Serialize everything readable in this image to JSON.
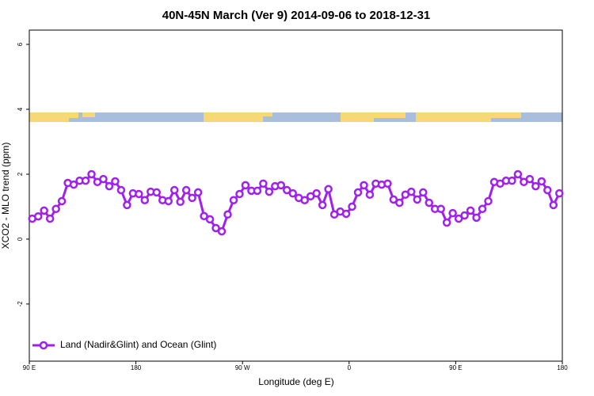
{
  "chart_data": {
    "type": "line",
    "title": "40N-45N March (Ver 9)   2014-09-06 to 2018-12-31",
    "x_label": "Longitude (deg E)",
    "y_label": "XCO2 - MLO trend (ppm)",
    "x": [
      92.5,
      97.5,
      102.5,
      107.5,
      112.5,
      117.5,
      122.5,
      127.5,
      132.5,
      137.5,
      142.5,
      147.5,
      152.5,
      157.5,
      162.5,
      167.5,
      172.5,
      177.5,
      182.5,
      187.5,
      192.5,
      197.5,
      202.5,
      207.5,
      212.5,
      217.5,
      222.5,
      227.5,
      232.5,
      237.5,
      242.5,
      247.5,
      252.5,
      257.5,
      262.5,
      267.5,
      272.5,
      277.5,
      282.5,
      287.5,
      292.5,
      297.5,
      302.5,
      307.5,
      312.5,
      317.5,
      322.5,
      327.5,
      332.5,
      337.5,
      342.5,
      347.5,
      352.5,
      357.5,
      362.5,
      367.5,
      372.5,
      377.5,
      382.5,
      387.5,
      392.5,
      397.5,
      402.5,
      407.5,
      412.5,
      417.5,
      422.5,
      427.5,
      432.5,
      437.5,
      442.5,
      447.5,
      452.5,
      457.5,
      462.5,
      467.5,
      472.5,
      477.5,
      482.5,
      487.5,
      492.5,
      497.5,
      502.5,
      507.5,
      512.5,
      517.5,
      522.5,
      527.5,
      532.5,
      537.5
    ],
    "series": [
      {
        "name": "Land (Nadir&Glint) and Ocean (Glint)",
        "color": "#a020f0",
        "values": [
          0.63,
          0.7,
          0.88,
          0.63,
          0.93,
          1.17,
          1.73,
          1.68,
          1.8,
          1.8,
          2.0,
          1.76,
          1.85,
          1.63,
          1.78,
          1.51,
          1.05,
          1.41,
          1.39,
          1.2,
          1.46,
          1.44,
          1.2,
          1.17,
          1.51,
          1.15,
          1.51,
          1.27,
          1.44,
          0.71,
          0.61,
          0.34,
          0.24,
          0.76,
          1.2,
          1.39,
          1.66,
          1.49,
          1.49,
          1.71,
          1.46,
          1.63,
          1.66,
          1.51,
          1.41,
          1.27,
          1.2,
          1.32,
          1.41,
          1.05,
          1.54,
          0.76,
          0.85,
          0.78,
          1.0,
          1.44,
          1.66,
          1.37,
          1.71,
          1.68,
          1.71,
          1.22,
          1.12,
          1.37,
          1.46,
          1.22,
          1.44,
          1.12,
          0.93,
          0.93,
          0.51,
          0.8,
          0.63,
          0.73,
          0.88,
          0.66,
          0.93,
          1.17,
          1.76,
          1.71,
          1.8,
          1.8,
          2.0,
          1.76,
          1.85,
          1.63,
          1.78,
          1.51,
          1.05,
          1.41
        ]
      }
    ],
    "xlim": [
      90,
      540
    ],
    "xticks": [
      {
        "value": 90,
        "label": "90 E"
      },
      180,
      {
        "value": 270,
        "label": "90 W"
      },
      {
        "value": 360,
        "label": "0"
      },
      {
        "value": 450,
        "label": "90 E"
      },
      {
        "value": 540,
        "label": "180"
      }
    ],
    "ylim": [
      -3.76,
      6.44
    ],
    "yticks": [
      -2,
      0,
      2,
      4,
      6
    ],
    "legend": "bottom-left"
  }
}
